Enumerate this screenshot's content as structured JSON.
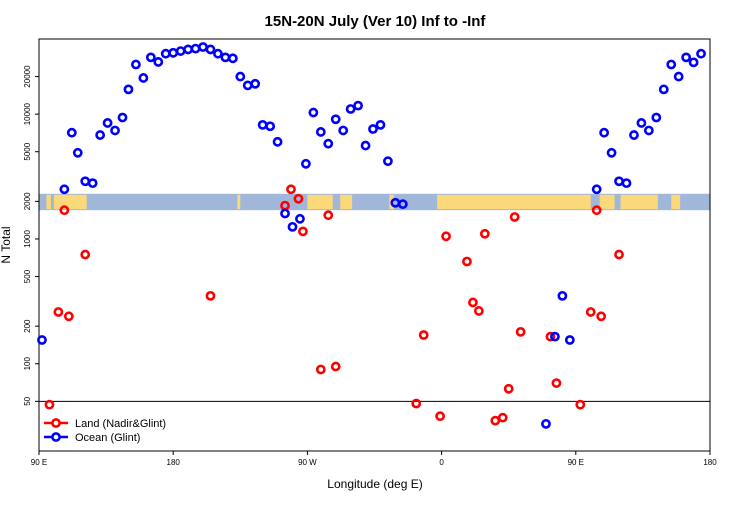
{
  "chart_data": {
    "type": "scatter",
    "title": "15N-20N July (Ver 10)   Inf to -Inf",
    "xlabel": "Longitude (deg E)",
    "ylabel": "N Total",
    "x_ticks": [
      {
        "value": 90,
        "label": "90 E"
      },
      {
        "value": 180,
        "label": "180"
      },
      {
        "value": 270,
        "label": "90 W"
      },
      {
        "value": 360,
        "label": "0"
      },
      {
        "value": 450,
        "label": "90 E"
      },
      {
        "value": 540,
        "label": "180"
      }
    ],
    "y_ticks": [
      50,
      100,
      200,
      500,
      1000,
      2000,
      5000,
      10000,
      20000
    ],
    "xlim": [
      90,
      540
    ],
    "ylim_log": [
      20,
      40000
    ],
    "reference_line": 50,
    "land_band": {
      "y_min": 1700,
      "y_max": 2300,
      "land_spans": [
        [
          95,
          98
        ],
        [
          100,
          122
        ],
        [
          223,
          225
        ],
        [
          270,
          287
        ],
        [
          292,
          300
        ],
        [
          325,
          328
        ],
        [
          357,
          460
        ],
        [
          466,
          476
        ],
        [
          480,
          505
        ],
        [
          514,
          520
        ]
      ]
    },
    "colors": {
      "land": "#ff0000",
      "ocean": "#0000ff",
      "band_ocean": "#a1b7d9",
      "band_land": "#fbd97a"
    },
    "legend": [
      {
        "label": "Land (Nadir&Glint)",
        "color": "#ff0000"
      },
      {
        "label": "Ocean (Glint)",
        "color": "#0000ff"
      }
    ],
    "series": [
      {
        "name": "Land (Nadir&Glint)",
        "color": "#ff0000",
        "points": [
          [
            97,
            47
          ],
          [
            107,
            1700
          ],
          [
            103,
            260
          ],
          [
            110,
            240
          ],
          [
            121,
            750
          ],
          [
            205,
            350
          ],
          [
            255,
            1850
          ],
          [
            259,
            2500
          ],
          [
            264,
            2100
          ],
          [
            267,
            1150
          ],
          [
            279,
            90
          ],
          [
            284,
            1550
          ],
          [
            289,
            95
          ],
          [
            343,
            48
          ],
          [
            348,
            170
          ],
          [
            359,
            38
          ],
          [
            363,
            1050
          ],
          [
            377,
            660
          ],
          [
            381,
            310
          ],
          [
            385,
            265
          ],
          [
            389,
            1100
          ],
          [
            396,
            35
          ],
          [
            401,
            37
          ],
          [
            405,
            63
          ],
          [
            409,
            1500
          ],
          [
            413,
            180
          ],
          [
            433,
            165
          ],
          [
            437,
            70
          ],
          [
            453,
            47
          ],
          [
            460,
            260
          ],
          [
            464,
            1700
          ],
          [
            467,
            240
          ],
          [
            479,
            750
          ]
        ]
      },
      {
        "name": "Ocean (Glint)",
        "color": "#0000ff",
        "points": [
          [
            92,
            155
          ],
          [
            107,
            2500
          ],
          [
            112,
            7100
          ],
          [
            116,
            4900
          ],
          [
            121,
            2900
          ],
          [
            126,
            2800
          ],
          [
            131,
            6800
          ],
          [
            136,
            8500
          ],
          [
            141,
            7400
          ],
          [
            146,
            9400
          ],
          [
            150,
            15800
          ],
          [
            155,
            25000
          ],
          [
            160,
            19500
          ],
          [
            165,
            28500
          ],
          [
            170,
            26200
          ],
          [
            175,
            30500
          ],
          [
            180,
            31000
          ],
          [
            185,
            32000
          ],
          [
            190,
            33000
          ],
          [
            195,
            33500
          ],
          [
            200,
            34500
          ],
          [
            205,
            33000
          ],
          [
            210,
            30500
          ],
          [
            215,
            28500
          ],
          [
            220,
            28000
          ],
          [
            225,
            20000
          ],
          [
            230,
            17000
          ],
          [
            235,
            17500
          ],
          [
            240,
            8200
          ],
          [
            245,
            8000
          ],
          [
            250,
            6000
          ],
          [
            255,
            1600
          ],
          [
            260,
            1250
          ],
          [
            265,
            1450
          ],
          [
            269,
            4000
          ],
          [
            274,
            10300
          ],
          [
            279,
            7200
          ],
          [
            284,
            5800
          ],
          [
            289,
            9100
          ],
          [
            294,
            7400
          ],
          [
            299,
            11000
          ],
          [
            304,
            11700
          ],
          [
            309,
            5600
          ],
          [
            314,
            7600
          ],
          [
            319,
            8200
          ],
          [
            324,
            4200
          ],
          [
            329,
            1950
          ],
          [
            334,
            1900
          ],
          [
            430,
            33
          ],
          [
            436,
            165
          ],
          [
            441,
            350
          ],
          [
            446,
            155
          ],
          [
            464,
            2500
          ],
          [
            469,
            7100
          ],
          [
            474,
            4900
          ],
          [
            479,
            2900
          ],
          [
            484,
            2800
          ],
          [
            489,
            6800
          ],
          [
            494,
            8500
          ],
          [
            499,
            7400
          ],
          [
            504,
            9400
          ],
          [
            509,
            15800
          ],
          [
            514,
            25000
          ],
          [
            519,
            20000
          ],
          [
            524,
            28500
          ],
          [
            529,
            26000
          ],
          [
            534,
            30500
          ]
        ]
      }
    ]
  }
}
